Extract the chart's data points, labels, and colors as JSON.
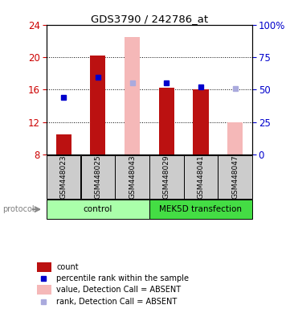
{
  "title": "GDS3790 / 242786_at",
  "samples": [
    "GSM448023",
    "GSM448025",
    "GSM448043",
    "GSM448029",
    "GSM448041",
    "GSM448047"
  ],
  "ylim_left": [
    8,
    24
  ],
  "ylim_right": [
    0,
    100
  ],
  "yticks_left": [
    8,
    12,
    16,
    20,
    24
  ],
  "yticks_right": [
    0,
    25,
    50,
    75,
    100
  ],
  "yticklabels_right": [
    "0",
    "25",
    "50",
    "75",
    "100%"
  ],
  "bar_values": [
    10.5,
    20.2,
    null,
    16.2,
    16.0,
    null
  ],
  "bar_color_present": "#bb1111",
  "bar_color_absent": "#f5b8b8",
  "absent_bar_values": [
    null,
    null,
    22.5,
    null,
    null,
    12.0
  ],
  "dot_values": [
    15.0,
    17.5,
    null,
    16.8,
    16.3,
    null
  ],
  "dot_color_present": "#0000cc",
  "absent_dot_values": [
    null,
    null,
    16.8,
    null,
    null,
    16.1
  ],
  "absent_dot_color": "#aaaadd",
  "control_color": "#aaffaa",
  "mek_color": "#44dd44",
  "sample_box_color": "#cccccc",
  "left_tick_color": "#cc0000",
  "right_tick_color": "#0000cc",
  "legend_items": [
    {
      "color": "#bb1111",
      "shape": "rect",
      "label": "count"
    },
    {
      "color": "#0000cc",
      "shape": "square",
      "label": "percentile rank within the sample"
    },
    {
      "color": "#f5b8b8",
      "shape": "rect",
      "label": "value, Detection Call = ABSENT"
    },
    {
      "color": "#aaaadd",
      "shape": "square",
      "label": "rank, Detection Call = ABSENT"
    }
  ]
}
